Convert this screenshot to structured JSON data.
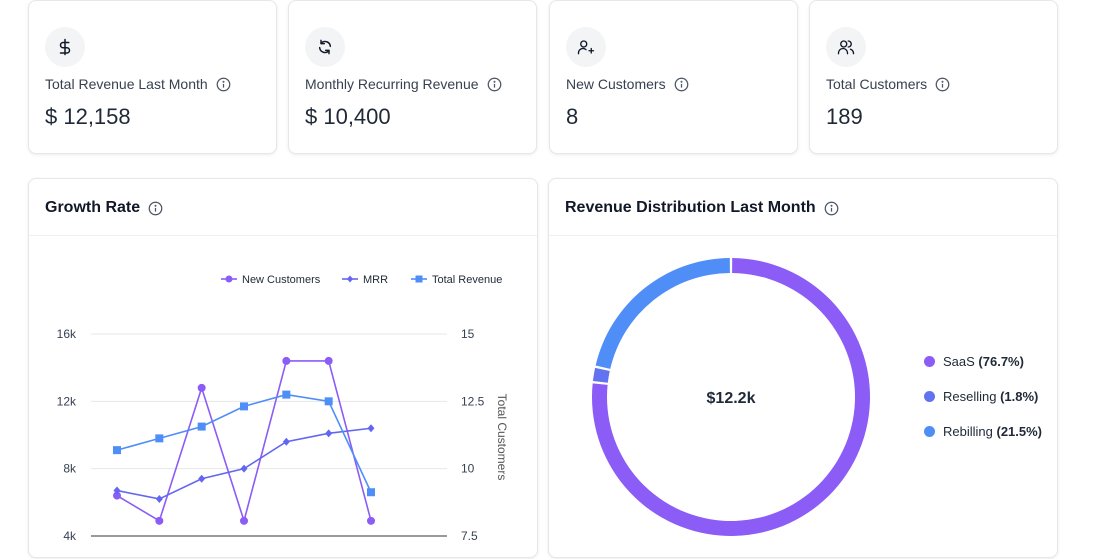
{
  "stats": [
    {
      "icon": "dollar-icon",
      "label": "Total Revenue Last Month",
      "value": "$ 12,158"
    },
    {
      "icon": "refresh-icon",
      "label": "Monthly Recurring Revenue",
      "value": "$ 10,400"
    },
    {
      "icon": "user-plus-icon",
      "label": "New Customers",
      "value": "8"
    },
    {
      "icon": "users-icon",
      "label": "Total Customers",
      "value": "189"
    }
  ],
  "growth": {
    "title": "Growth Rate",
    "chart_data": {
      "type": "line",
      "legend": [
        "New Customers",
        "MRR",
        "Total Revenue"
      ],
      "legend_position": "top-right",
      "y_left_ticks": [
        "16k",
        "12k",
        "8k",
        "4k"
      ],
      "y_left_range": [
        4000,
        16000
      ],
      "y_right_ticks": [
        "15",
        "12.5",
        "10",
        "7.5"
      ],
      "y_right_range": [
        7.5,
        15
      ],
      "y_right_label": "Total Customers",
      "series": [
        {
          "name": "New Customers",
          "color": "#8b5cf6",
          "marker": "circle",
          "values": [
            6400,
            4900,
            12800,
            4900,
            14400,
            14400,
            4900
          ]
        },
        {
          "name": "MRR",
          "color": "#6366f1",
          "marker": "diamond",
          "values": [
            6700,
            6200,
            7400,
            8000,
            9600,
            10100,
            10400
          ]
        },
        {
          "name": "Total Revenue",
          "color": "#4f8ef7",
          "marker": "square",
          "values": [
            9100,
            9800,
            10500,
            11700,
            12400,
            12000,
            6600
          ]
        }
      ]
    }
  },
  "distribution": {
    "title": "Revenue Distribution Last Month",
    "center_label": "$12.2k",
    "chart_data": {
      "type": "pie",
      "slices": [
        {
          "name": "SaaS",
          "pct_label": "(76.7%)",
          "value": 76.7,
          "color": "#8b5cf6"
        },
        {
          "name": "Reselling",
          "pct_label": "(1.8%)",
          "value": 1.8,
          "color": "#6173f0"
        },
        {
          "name": "Rebilling",
          "pct_label": "(21.5%)",
          "value": 21.5,
          "color": "#4f8ef7"
        }
      ]
    }
  }
}
